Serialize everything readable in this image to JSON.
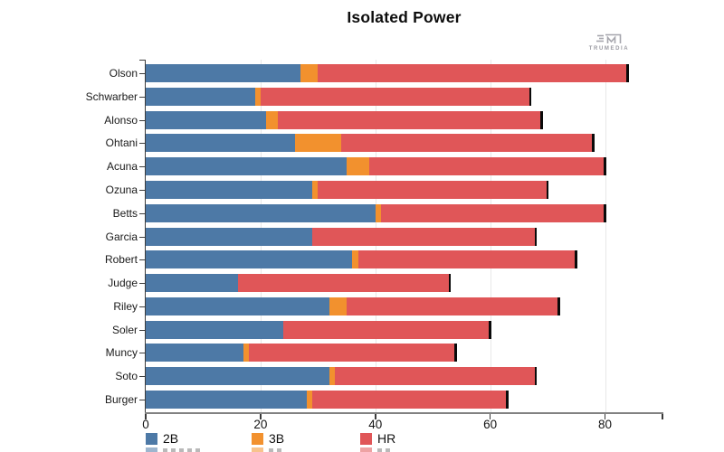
{
  "title": "Isolated Power",
  "branding": {
    "logo_text": "TRUMEDIA"
  },
  "legend": [
    {
      "label": "2B",
      "color": "#4d79a6"
    },
    {
      "label": "3B",
      "color": "#f2912e"
    },
    {
      "label": "HR",
      "color": "#e05658"
    }
  ],
  "chart_data": {
    "type": "bar",
    "orientation": "horizontal",
    "stacked": true,
    "title": "Isolated Power",
    "categories": [
      "Olson",
      "Schwarber",
      "Alonso",
      "Ohtani",
      "Acuna",
      "Ozuna",
      "Betts",
      "Garcia",
      "Robert",
      "Judge",
      "Riley",
      "Soler",
      "Muncy",
      "Soto",
      "Burger"
    ],
    "series": [
      {
        "name": "2B",
        "color": "#4d79a6",
        "values": [
          27,
          19,
          21,
          26,
          35,
          29,
          40,
          29,
          36,
          16,
          32,
          24,
          17,
          32,
          28
        ]
      },
      {
        "name": "3B",
        "color": "#f2912e",
        "values": [
          3,
          1,
          2,
          8,
          4,
          1,
          1,
          0,
          1,
          0,
          3,
          0,
          1,
          1,
          1
        ]
      },
      {
        "name": "HR",
        "color": "#e05658",
        "values": [
          54,
          47,
          46,
          44,
          41,
          40,
          39,
          39,
          38,
          37,
          37,
          36,
          36,
          35,
          34
        ]
      }
    ],
    "totals": [
      84,
      67,
      69,
      78,
      80,
      70,
      80,
      68,
      75,
      53,
      72,
      60,
      54,
      68,
      63
    ],
    "x_ticks": [
      0,
      20,
      40,
      60,
      80
    ],
    "xlim": [
      0,
      90
    ],
    "grid": true,
    "bar_end_stroke": "#0a0a0a",
    "legend_position": "bottom",
    "xlabel": "",
    "ylabel": ""
  }
}
